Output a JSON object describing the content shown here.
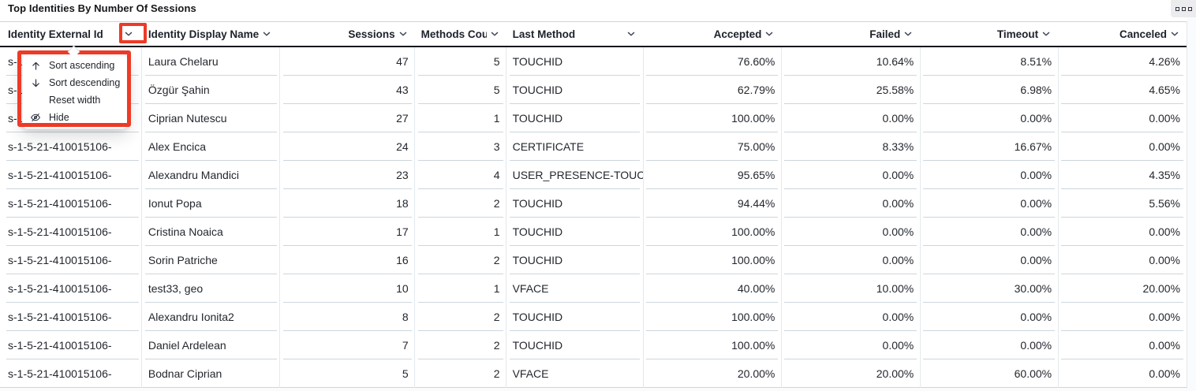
{
  "panel": {
    "title": "Top Identities By Number Of Sessions",
    "options_icon": "three-squares-icon"
  },
  "annotation": {
    "color": "#ee3a26",
    "purpose": "highlight sort chevron and column menu"
  },
  "table": {
    "columns": [
      {
        "key": "id",
        "label": "Identity External Id",
        "align": "left",
        "width": 180
      },
      {
        "key": "name",
        "label": "Identity Display Name",
        "align": "left",
        "width": 175
      },
      {
        "key": "sessions",
        "label": "Sessions",
        "align": "right",
        "width": 171
      },
      {
        "key": "methods",
        "label": "Methods Count",
        "align": "right",
        "width": 116
      },
      {
        "key": "last_method",
        "label": "Last Method",
        "align": "left",
        "width": 174
      },
      {
        "key": "accepted",
        "label": "Accepted",
        "align": "right",
        "width": 175
      },
      {
        "key": "failed",
        "label": "Failed",
        "align": "right",
        "width": 176
      },
      {
        "key": "timeout",
        "label": "Timeout",
        "align": "right",
        "width": 175
      },
      {
        "key": "canceled",
        "label": "Canceled",
        "align": "right",
        "width": 163
      }
    ],
    "rows": [
      {
        "id": "s-1-5-21-410015106-",
        "name": "Laura Chelaru",
        "sessions": "47",
        "methods": "5",
        "last_method": "TOUCHID",
        "accepted": "76.60%",
        "failed": "10.64%",
        "timeout": "8.51%",
        "canceled": "4.26%"
      },
      {
        "id": "s-1-5-21-410015106-",
        "name": "Özgür Şahin",
        "sessions": "43",
        "methods": "5",
        "last_method": "TOUCHID",
        "accepted": "62.79%",
        "failed": "25.58%",
        "timeout": "6.98%",
        "canceled": "4.65%"
      },
      {
        "id": "s-1-5-21-410015106-",
        "name": "Ciprian Nutescu",
        "sessions": "27",
        "methods": "1",
        "last_method": "TOUCHID",
        "accepted": "100.00%",
        "failed": "0.00%",
        "timeout": "0.00%",
        "canceled": "0.00%"
      },
      {
        "id": "s-1-5-21-410015106-",
        "name": "Alex Encica",
        "sessions": "24",
        "methods": "3",
        "last_method": "CERTIFICATE",
        "accepted": "75.00%",
        "failed": "8.33%",
        "timeout": "16.67%",
        "canceled": "0.00%"
      },
      {
        "id": "s-1-5-21-410015106-",
        "name": "Alexandru Mandici",
        "sessions": "23",
        "methods": "4",
        "last_method": "USER_PRESENCE-TOUC",
        "accepted": "95.65%",
        "failed": "0.00%",
        "timeout": "0.00%",
        "canceled": "4.35%"
      },
      {
        "id": "s-1-5-21-410015106-",
        "name": "Ionut Popa",
        "sessions": "18",
        "methods": "2",
        "last_method": "TOUCHID",
        "accepted": "94.44%",
        "failed": "0.00%",
        "timeout": "0.00%",
        "canceled": "5.56%"
      },
      {
        "id": "s-1-5-21-410015106-",
        "name": "Cristina Noaica",
        "sessions": "17",
        "methods": "1",
        "last_method": "TOUCHID",
        "accepted": "100.00%",
        "failed": "0.00%",
        "timeout": "0.00%",
        "canceled": "0.00%"
      },
      {
        "id": "s-1-5-21-410015106-",
        "name": "Sorin Patriche",
        "sessions": "16",
        "methods": "2",
        "last_method": "TOUCHID",
        "accepted": "100.00%",
        "failed": "0.00%",
        "timeout": "0.00%",
        "canceled": "0.00%"
      },
      {
        "id": "s-1-5-21-410015106-",
        "name": "test33, geo",
        "sessions": "10",
        "methods": "1",
        "last_method": "VFACE",
        "accepted": "40.00%",
        "failed": "10.00%",
        "timeout": "30.00%",
        "canceled": "20.00%"
      },
      {
        "id": "s-1-5-21-410015106-",
        "name": "Alexandru Ionita2",
        "sessions": "8",
        "methods": "2",
        "last_method": "TOUCHID",
        "accepted": "100.00%",
        "failed": "0.00%",
        "timeout": "0.00%",
        "canceled": "0.00%"
      },
      {
        "id": "s-1-5-21-410015106-",
        "name": "Daniel Ardelean",
        "sessions": "7",
        "methods": "2",
        "last_method": "TOUCHID",
        "accepted": "100.00%",
        "failed": "0.00%",
        "timeout": "0.00%",
        "canceled": "0.00%"
      },
      {
        "id": "s-1-5-21-410015106-",
        "name": "Bodnar Ciprian",
        "sessions": "5",
        "methods": "2",
        "last_method": "VFACE",
        "accepted": "20.00%",
        "failed": "20.00%",
        "timeout": "60.00%",
        "canceled": "0.00%"
      }
    ]
  },
  "column_menu": {
    "attached_to": "Identity External Id",
    "items": [
      {
        "icon": "arrow-up-icon",
        "label": "Sort ascending"
      },
      {
        "icon": "arrow-down-icon",
        "label": "Sort descending"
      },
      {
        "icon": "",
        "label": "Reset width"
      },
      {
        "icon": "eye-off-icon",
        "label": "Hide"
      }
    ]
  }
}
